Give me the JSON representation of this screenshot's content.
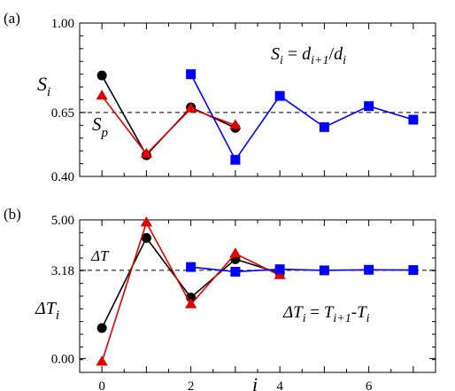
{
  "chart_data": [
    {
      "type": "line",
      "panel_label": "(a)",
      "ylabel": {
        "main": "S",
        "sub": "i"
      },
      "equation": {
        "lhs": "S",
        "lhs_sub": "i",
        "eq": " = ",
        "num": "d",
        "num_sub": "i+1",
        "sep": "/",
        "den": "d",
        "den_sub": "i"
      },
      "ylim": [
        0.4,
        1.0
      ],
      "yticks": [
        0.4,
        0.65,
        1.0
      ],
      "ytick_labels": [
        "0.40",
        "0.65",
        "1.00"
      ],
      "xlim": [
        -0.5,
        7.5
      ],
      "reference_line": {
        "y": 0.65,
        "label": "S",
        "label_sub": "p"
      },
      "series": [
        {
          "marker": "circle",
          "color": "#000000",
          "x": [
            0,
            1,
            2,
            3
          ],
          "y": [
            0.795,
            0.483,
            0.67,
            0.59
          ]
        },
        {
          "marker": "triangle",
          "color": "#e00000",
          "x": [
            0,
            1,
            2,
            3
          ],
          "y": [
            0.715,
            0.488,
            0.665,
            0.6
          ]
        },
        {
          "marker": "square",
          "color": "#0000ff",
          "x": [
            2,
            3,
            4,
            5,
            6,
            7
          ],
          "y": [
            0.8,
            0.465,
            0.715,
            0.593,
            0.675,
            0.622
          ]
        }
      ]
    },
    {
      "type": "line",
      "panel_label": "(b)",
      "ylabel": {
        "main": "ΔT",
        "sub": "i"
      },
      "equation": {
        "lhs": "ΔT",
        "lhs_sub": "i",
        "eq": " = ",
        "a": "T",
        "a_sub": "i+1",
        "minus": "-",
        "b": "T",
        "b_sub": "i"
      },
      "xlabel": "i",
      "ylim": [
        -0.5,
        5.0
      ],
      "yticks": [
        0.0,
        3.18,
        5.0
      ],
      "ytick_labels": [
        "0.00",
        "3.18",
        "5.00"
      ],
      "xlim": [
        -0.5,
        7.5
      ],
      "xticks": [
        0,
        2,
        4,
        6
      ],
      "xtick_labels": [
        "0",
        "2",
        "4",
        "6"
      ],
      "reference_line": {
        "y": 3.18,
        "label": "ΔT"
      },
      "series": [
        {
          "marker": "circle",
          "color": "#000000",
          "x": [
            0,
            1,
            2,
            3,
            4
          ],
          "y": [
            1.1,
            4.35,
            2.2,
            3.58,
            3.08
          ]
        },
        {
          "marker": "triangle",
          "color": "#e00000",
          "x": [
            0,
            1,
            2,
            3,
            4
          ],
          "y": [
            -0.12,
            4.9,
            1.95,
            3.78,
            3.0
          ]
        },
        {
          "marker": "square",
          "color": "#0000ff",
          "x": [
            2,
            3,
            4,
            5,
            6,
            7
          ],
          "y": [
            3.3,
            3.13,
            3.22,
            3.18,
            3.2,
            3.19
          ]
        }
      ]
    }
  ]
}
